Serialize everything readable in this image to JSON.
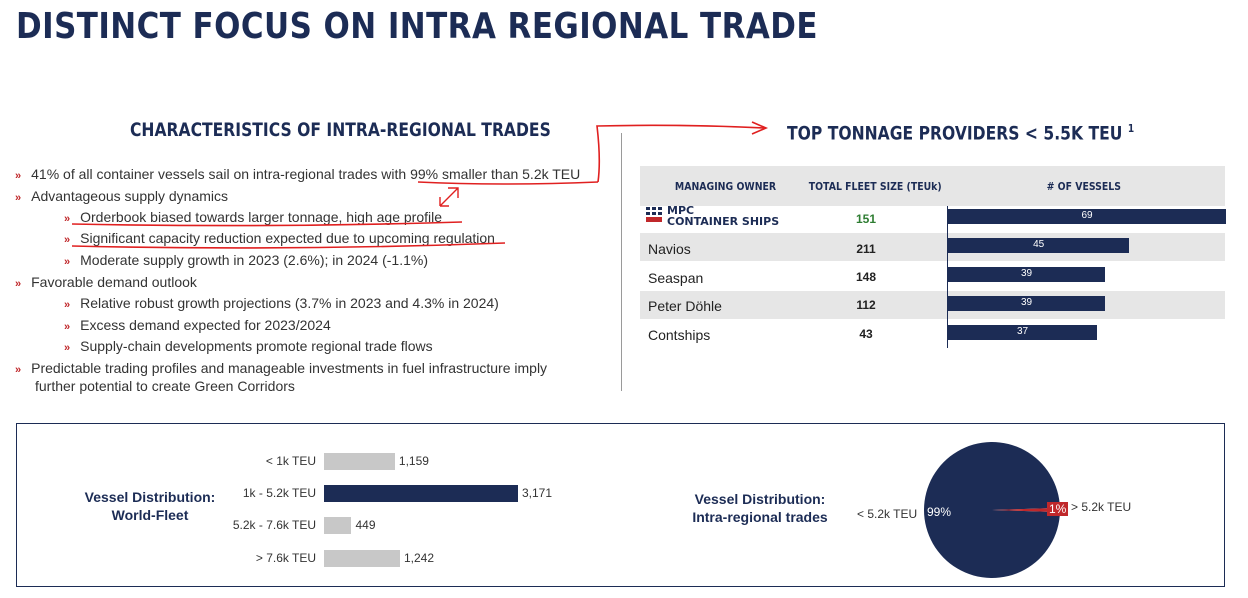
{
  "title": "DISTINCT FOCUS ON INTRA REGIONAL TRADE",
  "left_section": {
    "heading": "CHARACTERISTICS OF INTRA-REGIONAL TRADES",
    "bullets": [
      {
        "level": 1,
        "text": "41% of all container vessels sail on intra-regional trades with 99% smaller than 5.2k TEU"
      },
      {
        "level": 1,
        "text": "Advantageous supply dynamics"
      },
      {
        "level": 2,
        "text": "Orderbook biased towards larger tonnage, high age profile"
      },
      {
        "level": 2,
        "text": "Significant capacity reduction expected due to upcoming regulation"
      },
      {
        "level": 2,
        "text": "Moderate supply growth in 2023 (2.6%); in 2024 (-1.1%)"
      },
      {
        "level": 1,
        "text": "Favorable demand outlook"
      },
      {
        "level": 2,
        "text": "Relative robust growth projections (3.7% in 2023 and 4.3% in 2024)"
      },
      {
        "level": 2,
        "text": "Excess demand expected for 2023/2024"
      },
      {
        "level": 2,
        "text": "Supply-chain developments promote regional trade flows"
      },
      {
        "level": 1,
        "text": "Predictable trading profiles and manageable investments in fuel infrastructure imply"
      },
      {
        "level": 0,
        "text": "further potential to create Green Corridors"
      }
    ]
  },
  "right_section": {
    "heading": "TOP TONNAGE PROVIDERS < 5.5K TEU",
    "footnote": "1",
    "columns": [
      "MANAGING OWNER",
      "TOTAL FLEET SIZE (TEUk)",
      "# OF VESSELS"
    ],
    "logo_text": [
      "MPC",
      "CONTAINER SHIPS"
    ],
    "rows": [
      {
        "owner": "",
        "fleet_size": "151",
        "vessels": 69,
        "vessels_label": "69"
      },
      {
        "owner": "Navios",
        "fleet_size": "211",
        "vessels": 45,
        "vessels_label": "45"
      },
      {
        "owner": "Seaspan",
        "fleet_size": "148",
        "vessels": 39,
        "vessels_label": "39"
      },
      {
        "owner": "Peter Döhle",
        "fleet_size": "112",
        "vessels": 39,
        "vessels_label": "39"
      },
      {
        "owner": "Contships",
        "fleet_size": "43",
        "vessels": 37,
        "vessels_label": "37"
      }
    ]
  },
  "bottom": {
    "world_fleet_title": [
      "Vessel Distribution:",
      "World-Fleet"
    ],
    "intra_title": [
      "Vessel Distribution:",
      "Intra-regional trades"
    ]
  },
  "colors": {
    "navy": "#1c2c55",
    "gray": "#c8c8c8",
    "red": "#c0282b",
    "green": "#2e7d32"
  },
  "chart_data": [
    {
      "type": "bar",
      "orientation": "horizontal",
      "categories": [
        "< 1k TEU",
        "1k - 5.2k TEU",
        "5.2k - 7.6k TEU",
        "> 7.6k  TEU"
      ],
      "values": [
        1159,
        3171,
        449,
        1242
      ],
      "value_labels": [
        "1,159",
        "3,171",
        "449",
        "1,242"
      ],
      "highlight_index": 1
    },
    {
      "type": "pie",
      "labels": [
        "< 5.2k TEU",
        "> 5.2k TEU"
      ],
      "values": [
        99,
        1
      ],
      "value_labels": [
        "99%",
        "1%"
      ]
    }
  ]
}
